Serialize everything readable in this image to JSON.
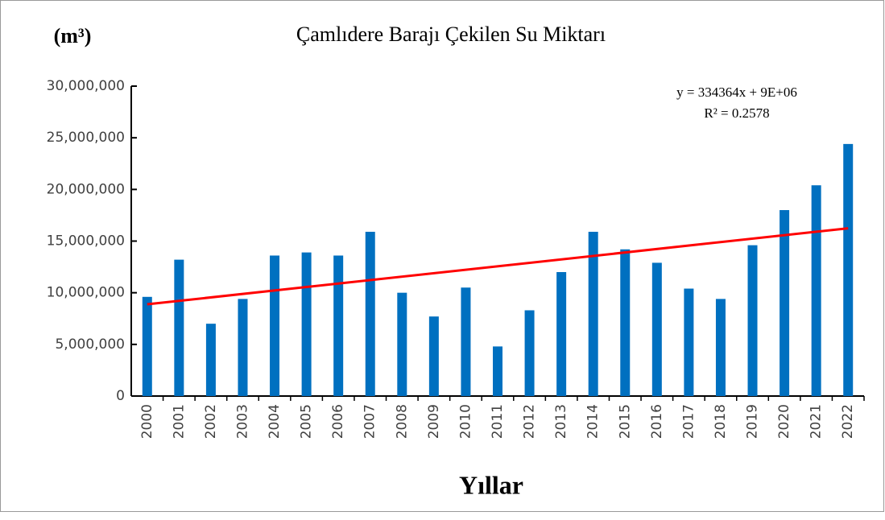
{
  "chart_data": {
    "type": "bar",
    "title": "Çamlıdere Barajı  Çekilen Su Miktarı",
    "y_label": "(m³)",
    "x_label": "Yıllar",
    "categories": [
      "2000",
      "2001",
      "2002",
      "2003",
      "2004",
      "2005",
      "2006",
      "2007",
      "2008",
      "2009",
      "2010",
      "2011",
      "2012",
      "2013",
      "2014",
      "2015",
      "2016",
      "2017",
      "2018",
      "2019",
      "2020",
      "2021",
      "2022"
    ],
    "values": [
      9600000,
      13200000,
      7000000,
      9400000,
      13600000,
      13900000,
      13600000,
      15900000,
      10000000,
      7700000,
      10500000,
      4800000,
      8300000,
      12000000,
      15900000,
      14200000,
      12900000,
      10400000,
      9400000,
      14600000,
      18000000,
      20400000,
      24400000
    ],
    "color": "#0070c0",
    "ylim": [
      0,
      30000000
    ],
    "yticks": [
      0,
      {
        "value": 5000000,
        "label": "5,000,000"
      },
      {
        "value": 10000000,
        "label": "10,000,000"
      },
      {
        "value": 15000000,
        "label": "15,000,000"
      },
      {
        "value": 20000000,
        "label": "20,000,000"
      },
      {
        "value": 25000000,
        "label": "25,000,000"
      },
      {
        "value": 30000000,
        "label": "30,000,000"
      }
    ],
    "trendline": {
      "color": "#ff0000",
      "values": [
        8880000,
        16240000
      ],
      "equation": "y = 334364x + 9E+06",
      "r_squared": "R² = 0.2578"
    },
    "grid": false
  }
}
